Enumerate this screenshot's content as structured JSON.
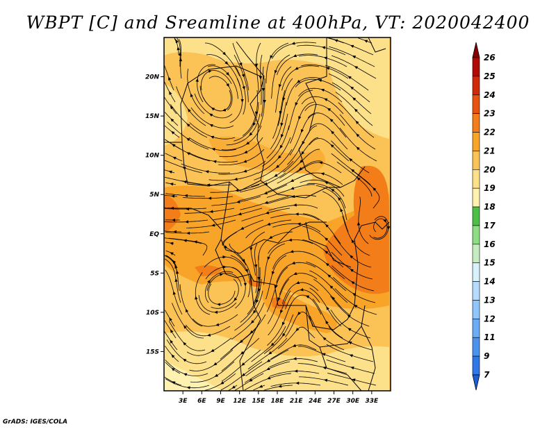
{
  "title": "WBPT [C] and Sreamline at 400hPa, VT: 2020042400",
  "credit": "GrADS: IGES/COLA",
  "map": {
    "lon_range": [
      0,
      36
    ],
    "lat_range": [
      -20,
      25
    ],
    "lon_ticks": [
      {
        "value": 3,
        "label": "3E"
      },
      {
        "value": 6,
        "label": "6E"
      },
      {
        "value": 9,
        "label": "9E"
      },
      {
        "value": 12,
        "label": "12E"
      },
      {
        "value": 15,
        "label": "15E"
      },
      {
        "value": 18,
        "label": "18E"
      },
      {
        "value": 21,
        "label": "21E"
      },
      {
        "value": 24,
        "label": "24E"
      },
      {
        "value": 27,
        "label": "27E"
      },
      {
        "value": 30,
        "label": "30E"
      },
      {
        "value": 33,
        "label": "33E"
      }
    ],
    "lat_ticks": [
      {
        "value": 20,
        "label": "20N"
      },
      {
        "value": 15,
        "label": "15N"
      },
      {
        "value": 10,
        "label": "10N"
      },
      {
        "value": 5,
        "label": "5N"
      },
      {
        "value": 0,
        "label": "EQ"
      },
      {
        "value": -5,
        "label": "5S"
      },
      {
        "value": -10,
        "label": "10S"
      },
      {
        "value": -15,
        "label": "15S"
      }
    ]
  },
  "colorbar": {
    "levels": [
      "7",
      "9",
      "11",
      "12",
      "13",
      "14",
      "15",
      "16",
      "17",
      "18",
      "19",
      "20",
      "21",
      "22",
      "23",
      "24",
      "25",
      "26"
    ],
    "colors": [
      "#1e5fd8",
      "#2f78e8",
      "#4a94f0",
      "#6aacf5",
      "#90c6fa",
      "#b5dcfc",
      "#d9f0fd",
      "#c4ecc0",
      "#8edc86",
      "#4cbf44",
      "#fff2b0",
      "#fde08a",
      "#fbc255",
      "#f7a428",
      "#f37d18",
      "#e85410",
      "#d02a0a",
      "#b00a06",
      "#8a0000"
    ]
  }
}
